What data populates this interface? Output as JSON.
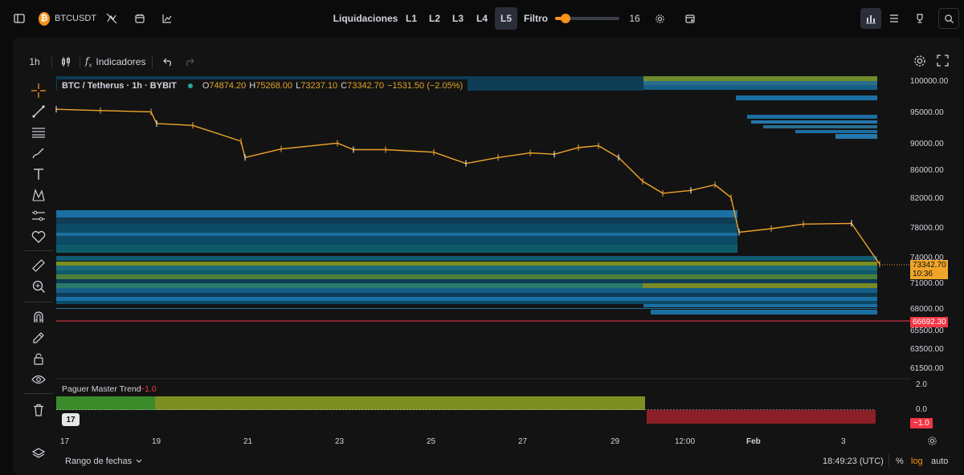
{
  "header": {
    "symbol": "BTCUSDT",
    "liquidaciones_label": "Liquidaciones",
    "levels": [
      "L1",
      "L2",
      "L3",
      "L4",
      "L5"
    ],
    "active_level": "L5",
    "filtro_label": "Filtro",
    "filtro_value": "16",
    "filtro_fraction": 0.06
  },
  "toolbar": {
    "interval": "1h",
    "indicators_label": "Indicadores"
  },
  "legend": {
    "title": "BTC / Tetherus · 1h · BYBIT",
    "o_label": "O",
    "o_value": "74874.20",
    "h_label": "H",
    "h_value": "75268.00",
    "l_label": "L",
    "l_value": "73237.10",
    "c_label": "C",
    "c_value": "73342.70",
    "change": "−1531.50 (−2.05%)"
  },
  "price_axis": [
    "100000.00",
    "95000.00",
    "90000.00",
    "86000.00",
    "82000.00",
    "78000.00",
    "74000.00",
    "71000.00",
    "68000.00",
    "65500.00",
    "63500.00",
    "61500.00"
  ],
  "price_tags": {
    "last_price": "73342.70",
    "countdown": "10:36",
    "liq_line": "66692.30"
  },
  "indicator": {
    "name": "Paguer Master Trend",
    "value": "−1.0",
    "axis": [
      "2.0",
      "0.0"
    ],
    "tag": "−1.0"
  },
  "time_axis": [
    "17",
    "19",
    "21",
    "23",
    "25",
    "27",
    "29",
    "12:00",
    "Feb",
    "3"
  ],
  "bottom": {
    "range_label": "Rango de fechas",
    "clock": "18:49:23 (UTC)",
    "percent": "%",
    "log": "log",
    "auto": "auto"
  },
  "colors": {
    "accent_orange": "#f7931a",
    "candle_orange": "#f0a52a",
    "liq_line_red": "#f23645",
    "trend_green": "#3a8a2a",
    "trend_olive": "#7d8f22",
    "trend_red": "#8a1f28"
  },
  "chart_data": {
    "type": "line",
    "axis_ticks": [
      100000,
      95000,
      90000,
      86000,
      82000,
      78000,
      74000,
      71000,
      68000,
      65500,
      63500,
      61500
    ],
    "series": [
      {
        "x": [
          "17",
          "18",
          "19",
          "19",
          "20",
          "21",
          "21",
          "22",
          "23",
          "23",
          "24",
          "25",
          "25",
          "26",
          "27",
          "27",
          "28",
          "29",
          "29",
          "30",
          "30",
          "31",
          "31",
          "Feb",
          "Feb",
          "2",
          "3",
          "3",
          "3"
        ],
        "values": [
          95600,
          95400,
          95200,
          93300,
          93000,
          90500,
          88000,
          89300,
          90200,
          89200,
          89200,
          88800,
          87100,
          88000,
          88700,
          88500,
          89500,
          89800,
          88000,
          84500,
          82800,
          83200,
          84000,
          82200,
          77500,
          78000,
          78600,
          78700,
          73300
        ]
      }
    ]
  }
}
